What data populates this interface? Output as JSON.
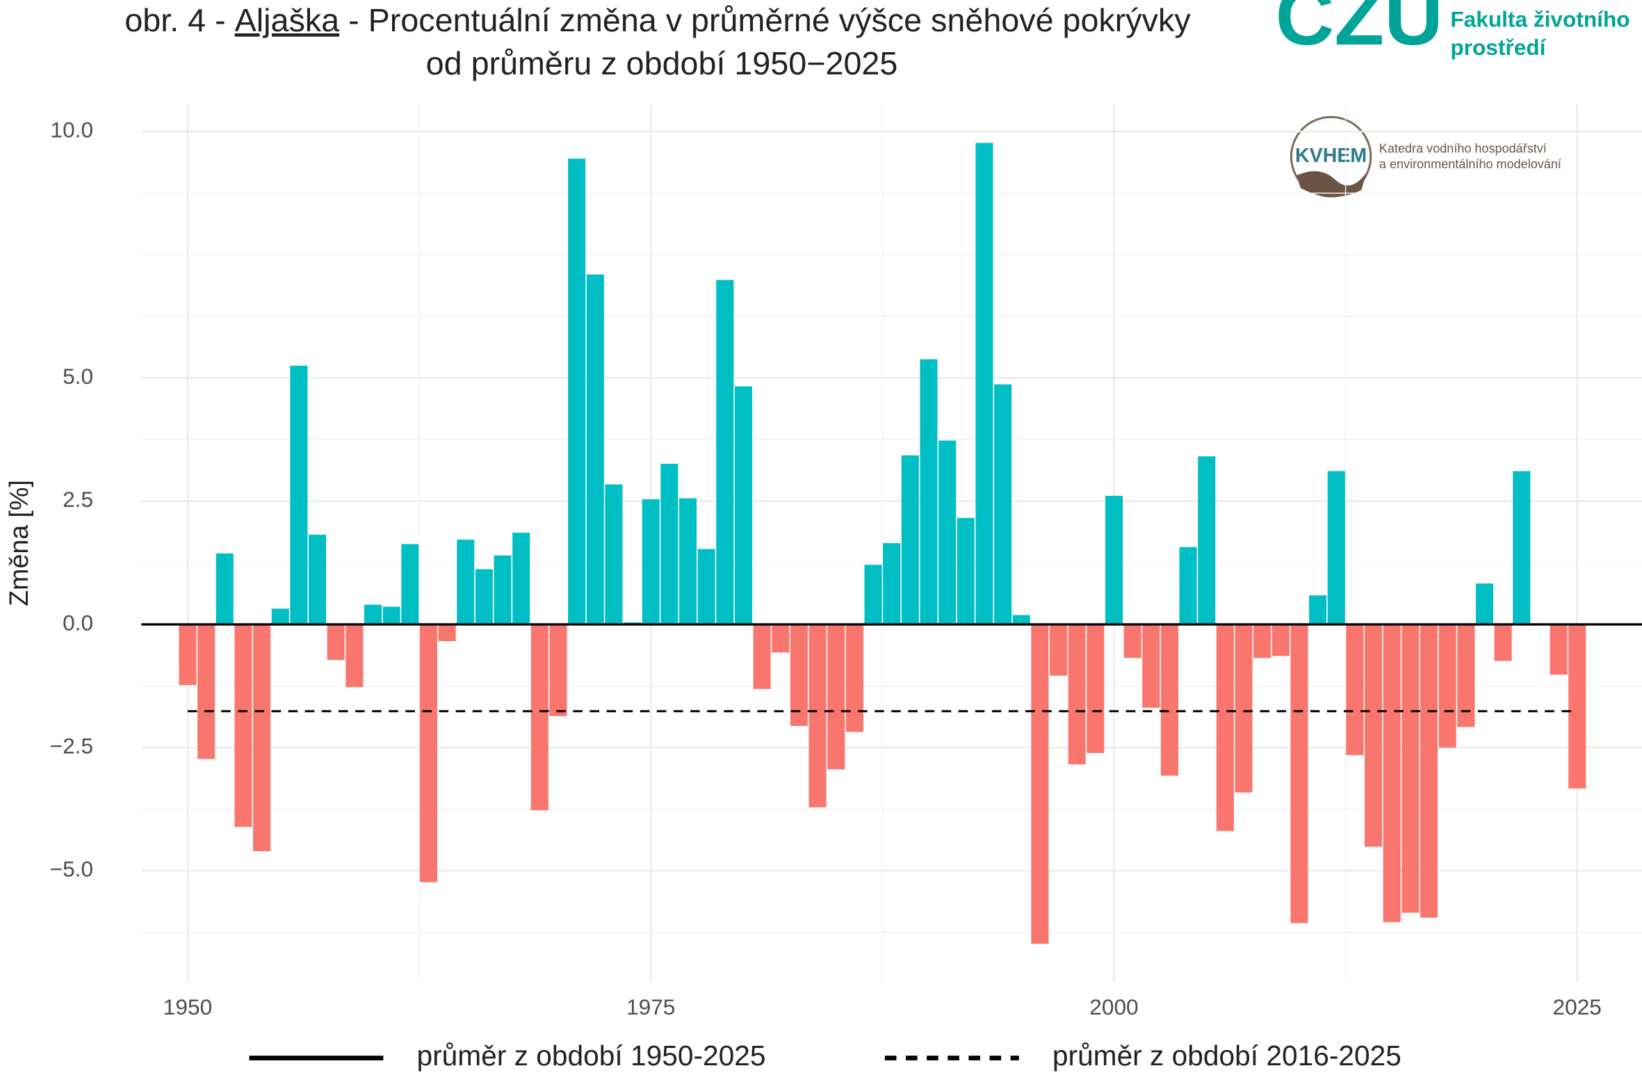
{
  "chart_data": {
    "type": "bar",
    "title_prefix": "obr. 4 - ",
    "title_region": "Aljaška",
    "title_rest": " - Procentuální změna v průměrné výšce sněhové pokrývky",
    "subtitle": "od průměru z období 1950−2025",
    "y_label": "Změna [%]",
    "logos": {
      "czu": "CZU",
      "faculty_1": "Fakulta životního",
      "faculty_2": "prostředí",
      "kvhem": "KVHEM",
      "dept_1": "Katedra vodního hospodářství",
      "dept_2": "a environmentálního modelování"
    },
    "x": [
      1950,
      1951,
      1952,
      1953,
      1954,
      1955,
      1956,
      1957,
      1958,
      1959,
      1960,
      1961,
      1962,
      1963,
      1964,
      1965,
      1966,
      1967,
      1968,
      1969,
      1970,
      1971,
      1972,
      1973,
      1974,
      1975,
      1976,
      1977,
      1978,
      1979,
      1980,
      1981,
      1982,
      1983,
      1984,
      1985,
      1986,
      1987,
      1988,
      1989,
      1990,
      1991,
      1992,
      1993,
      1994,
      1995,
      1996,
      1997,
      1998,
      1999,
      2000,
      2001,
      2002,
      2003,
      2004,
      2005,
      2006,
      2007,
      2008,
      2009,
      2010,
      2011,
      2012,
      2013,
      2014,
      2015,
      2016,
      2017,
      2018,
      2019,
      2020,
      2021,
      2022,
      2023,
      2024,
      2025
    ],
    "values": [
      -1.23,
      -2.73,
      1.44,
      -4.11,
      -4.6,
      0.32,
      5.25,
      1.82,
      -0.72,
      -1.27,
      0.4,
      0.36,
      1.63,
      -5.23,
      -0.34,
      1.72,
      1.12,
      1.4,
      1.86,
      -3.77,
      -1.86,
      9.45,
      7.1,
      2.84,
      0.04,
      2.54,
      3.26,
      2.56,
      1.53,
      6.99,
      4.83,
      -1.31,
      -0.57,
      -2.06,
      -3.71,
      -2.94,
      -2.18,
      1.21,
      1.65,
      3.43,
      5.38,
      3.73,
      2.16,
      9.77,
      4.87,
      0.19,
      -6.48,
      -1.04,
      -2.84,
      -2.61,
      2.61,
      -0.68,
      -1.69,
      -3.07,
      1.57,
      3.41,
      -4.19,
      -3.41,
      -0.68,
      -0.64,
      -6.06,
      0.59,
      3.11,
      -2.65,
      -4.51,
      -6.04,
      -5.85,
      -5.95,
      -2.5,
      -2.08,
      0.83,
      -0.74,
      3.11,
      null,
      -1.02,
      -3.33
    ],
    "positive_color": "#00bfc4",
    "negative_color": "#f8766d",
    "reference_lines": [
      {
        "value": 0,
        "style": "solid",
        "label": "průměr z období 1950-2025"
      },
      {
        "value": -1.76,
        "style": "dashed",
        "label": "průměr z období 2016-2025"
      }
    ],
    "xlim": [
      1947.5,
      2028.5
    ],
    "ylim": [
      -7.25,
      10.55
    ],
    "xticks": [
      1950,
      1975,
      2000,
      2025
    ],
    "yticks": [
      {
        "value": -5,
        "label": "−5.0"
      },
      {
        "value": -2.5,
        "label": "−2.5"
      },
      {
        "value": 0,
        "label": "0.0"
      },
      2.5,
      {
        "value": 5,
        "label": "5.0"
      },
      {
        "value": 10,
        "label": "10.0"
      }
    ],
    "x_minor_grid": [
      1962.5,
      1987.5,
      2012.5
    ],
    "y_minor_grid": [
      -6.25,
      -3.75,
      -1.25,
      1.25,
      3.75,
      6.25,
      7.5,
      8.75
    ],
    "grid": true,
    "legend_position": "bottom"
  }
}
